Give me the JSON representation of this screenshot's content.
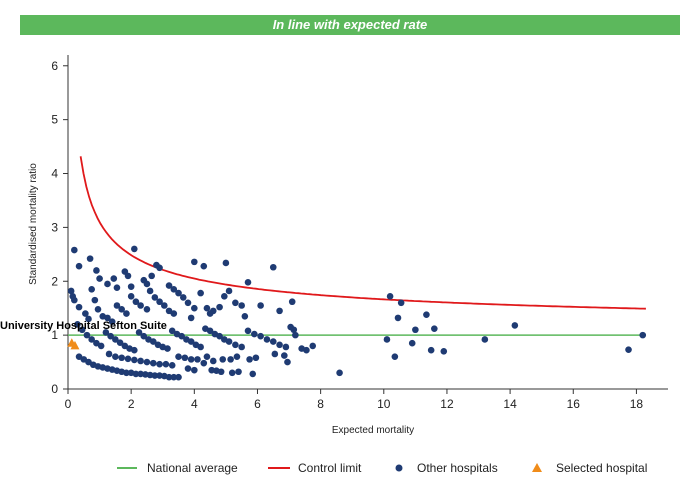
{
  "banner": {
    "text": "In line with expected rate",
    "color": "#5cb85c"
  },
  "chart_data": {
    "type": "scatter",
    "title": "",
    "xlabel": "Expected mortality",
    "ylabel": "Standardised mortality ratio",
    "xlim": [
      0,
      19
    ],
    "ylim": [
      0,
      6.2
    ],
    "xticks": [
      0,
      2,
      4,
      6,
      8,
      10,
      12,
      14,
      16,
      18
    ],
    "yticks": [
      0,
      1,
      2,
      3,
      4,
      5,
      6
    ],
    "grid": false,
    "legend_position": "bottom",
    "national_average": {
      "name": "National average",
      "y": 1,
      "x_range": [
        0,
        18.3
      ],
      "color": "#5cb85c"
    },
    "control_limit": {
      "name": "Control limit",
      "x_range": [
        0.4,
        18.3
      ],
      "approx_formula": "1 + 2.1/sqrt(x)",
      "color": "#e0191b"
    },
    "series": [
      {
        "name": "Other hospitals",
        "marker": "circle",
        "color": "#1f3b73",
        "points": [
          [
            0.2,
            2.58
          ],
          [
            0.35,
            2.28
          ],
          [
            0.7,
            2.42
          ],
          [
            0.9,
            2.2
          ],
          [
            1.0,
            2.05
          ],
          [
            1.25,
            1.95
          ],
          [
            1.45,
            2.05
          ],
          [
            1.55,
            1.88
          ],
          [
            1.8,
            2.18
          ],
          [
            1.9,
            2.1
          ],
          [
            2.1,
            2.6
          ],
          [
            2.0,
            1.9
          ],
          [
            2.4,
            2.02
          ],
          [
            2.5,
            1.95
          ],
          [
            2.65,
            2.1
          ],
          [
            2.8,
            2.3
          ],
          [
            2.9,
            2.25
          ],
          [
            3.2,
            1.92
          ],
          [
            3.35,
            1.85
          ],
          [
            4.0,
            2.36
          ],
          [
            4.3,
            2.28
          ],
          [
            5.0,
            2.34
          ],
          [
            6.5,
            2.26
          ],
          [
            0.1,
            1.82
          ],
          [
            0.15,
            1.72
          ],
          [
            0.2,
            1.65
          ],
          [
            0.35,
            1.52
          ],
          [
            0.55,
            1.4
          ],
          [
            0.65,
            1.3
          ],
          [
            0.75,
            1.85
          ],
          [
            0.85,
            1.65
          ],
          [
            0.95,
            1.48
          ],
          [
            1.1,
            1.35
          ],
          [
            1.25,
            1.32
          ],
          [
            1.4,
            1.25
          ],
          [
            1.55,
            1.55
          ],
          [
            1.7,
            1.48
          ],
          [
            1.85,
            1.4
          ],
          [
            2.0,
            1.72
          ],
          [
            2.15,
            1.62
          ],
          [
            2.3,
            1.55
          ],
          [
            2.5,
            1.48
          ],
          [
            2.6,
            1.82
          ],
          [
            2.75,
            1.7
          ],
          [
            2.9,
            1.62
          ],
          [
            3.05,
            1.55
          ],
          [
            3.2,
            1.45
          ],
          [
            3.35,
            1.4
          ],
          [
            3.5,
            1.78
          ],
          [
            3.65,
            1.7
          ],
          [
            3.8,
            1.6
          ],
          [
            4.0,
            1.5
          ],
          [
            4.2,
            1.78
          ],
          [
            4.4,
            1.5
          ],
          [
            4.6,
            1.45
          ],
          [
            4.8,
            1.52
          ],
          [
            4.95,
            1.72
          ],
          [
            5.1,
            1.82
          ],
          [
            5.3,
            1.6
          ],
          [
            5.5,
            1.55
          ],
          [
            5.7,
            1.98
          ],
          [
            6.1,
            1.55
          ],
          [
            6.7,
            1.45
          ],
          [
            7.1,
            1.62
          ],
          [
            4.5,
            1.4
          ],
          [
            3.9,
            1.32
          ],
          [
            5.6,
            1.35
          ],
          [
            0.3,
            1.2
          ],
          [
            0.45,
            1.1
          ],
          [
            0.6,
            1.0
          ],
          [
            0.75,
            0.92
          ],
          [
            0.9,
            0.85
          ],
          [
            1.05,
            0.8
          ],
          [
            1.2,
            1.05
          ],
          [
            1.35,
            0.98
          ],
          [
            1.5,
            0.92
          ],
          [
            1.65,
            0.86
          ],
          [
            1.8,
            0.8
          ],
          [
            1.95,
            0.75
          ],
          [
            2.1,
            0.72
          ],
          [
            2.25,
            1.05
          ],
          [
            2.4,
            0.98
          ],
          [
            2.55,
            0.92
          ],
          [
            2.7,
            0.88
          ],
          [
            2.85,
            0.82
          ],
          [
            3.0,
            0.78
          ],
          [
            3.15,
            0.75
          ],
          [
            3.3,
            1.08
          ],
          [
            3.45,
            1.02
          ],
          [
            3.6,
            0.98
          ],
          [
            3.75,
            0.92
          ],
          [
            3.9,
            0.88
          ],
          [
            4.05,
            0.82
          ],
          [
            4.2,
            0.78
          ],
          [
            4.35,
            1.12
          ],
          [
            4.5,
            1.08
          ],
          [
            4.65,
            1.02
          ],
          [
            4.8,
            0.98
          ],
          [
            4.95,
            0.92
          ],
          [
            5.1,
            0.88
          ],
          [
            5.3,
            0.82
          ],
          [
            5.5,
            0.78
          ],
          [
            5.7,
            1.08
          ],
          [
            5.9,
            1.02
          ],
          [
            6.1,
            0.98
          ],
          [
            6.3,
            0.92
          ],
          [
            6.5,
            0.88
          ],
          [
            6.7,
            0.82
          ],
          [
            6.9,
            0.78
          ],
          [
            7.05,
            1.15
          ],
          [
            7.15,
            1.1
          ],
          [
            7.2,
            1.0
          ],
          [
            7.4,
            0.75
          ],
          [
            7.55,
            0.72
          ],
          [
            7.75,
            0.8
          ],
          [
            6.55,
            0.65
          ],
          [
            6.85,
            0.62
          ],
          [
            6.95,
            0.5
          ],
          [
            0.35,
            0.6
          ],
          [
            0.5,
            0.55
          ],
          [
            0.65,
            0.5
          ],
          [
            0.8,
            0.45
          ],
          [
            0.95,
            0.42
          ],
          [
            1.1,
            0.4
          ],
          [
            1.25,
            0.38
          ],
          [
            1.4,
            0.36
          ],
          [
            1.55,
            0.34
          ],
          [
            1.7,
            0.32
          ],
          [
            1.85,
            0.3
          ],
          [
            2.0,
            0.3
          ],
          [
            2.15,
            0.28
          ],
          [
            2.3,
            0.28
          ],
          [
            2.45,
            0.27
          ],
          [
            2.6,
            0.26
          ],
          [
            2.75,
            0.25
          ],
          [
            2.9,
            0.25
          ],
          [
            3.05,
            0.24
          ],
          [
            3.2,
            0.22
          ],
          [
            3.35,
            0.22
          ],
          [
            3.5,
            0.22
          ],
          [
            3.8,
            0.38
          ],
          [
            4.0,
            0.35
          ],
          [
            4.3,
            0.48
          ],
          [
            4.55,
            0.35
          ],
          [
            4.7,
            0.34
          ],
          [
            4.85,
            0.32
          ],
          [
            5.2,
            0.3
          ],
          [
            5.4,
            0.32
          ],
          [
            5.85,
            0.28
          ],
          [
            1.3,
            0.65
          ],
          [
            1.5,
            0.6
          ],
          [
            1.7,
            0.58
          ],
          [
            1.9,
            0.56
          ],
          [
            2.1,
            0.54
          ],
          [
            2.3,
            0.52
          ],
          [
            2.5,
            0.5
          ],
          [
            2.7,
            0.48
          ],
          [
            2.9,
            0.46
          ],
          [
            3.1,
            0.46
          ],
          [
            3.3,
            0.44
          ],
          [
            3.5,
            0.6
          ],
          [
            3.7,
            0.58
          ],
          [
            3.9,
            0.55
          ],
          [
            4.1,
            0.55
          ],
          [
            4.4,
            0.6
          ],
          [
            4.6,
            0.52
          ],
          [
            4.9,
            0.55
          ],
          [
            5.15,
            0.55
          ],
          [
            5.35,
            0.6
          ],
          [
            5.75,
            0.55
          ],
          [
            5.95,
            0.58
          ],
          [
            8.6,
            0.3
          ],
          [
            10.1,
            0.92
          ],
          [
            10.2,
            1.72
          ],
          [
            10.35,
            0.6
          ],
          [
            10.45,
            1.32
          ],
          [
            10.55,
            1.6
          ],
          [
            10.9,
            0.85
          ],
          [
            11.0,
            1.1
          ],
          [
            11.35,
            1.38
          ],
          [
            11.5,
            0.72
          ],
          [
            11.6,
            1.12
          ],
          [
            11.9,
            0.7
          ],
          [
            13.2,
            0.92
          ],
          [
            14.15,
            1.18
          ],
          [
            17.75,
            0.73
          ],
          [
            18.2,
            1.0
          ]
        ]
      },
      {
        "name": "Selected hospital",
        "marker": "triangle",
        "color": "#f08c1a",
        "label": "University Hospital Sefton Suite",
        "points": [
          [
            0.12,
            0.85
          ],
          [
            0.22,
            0.8
          ]
        ]
      }
    ]
  }
}
